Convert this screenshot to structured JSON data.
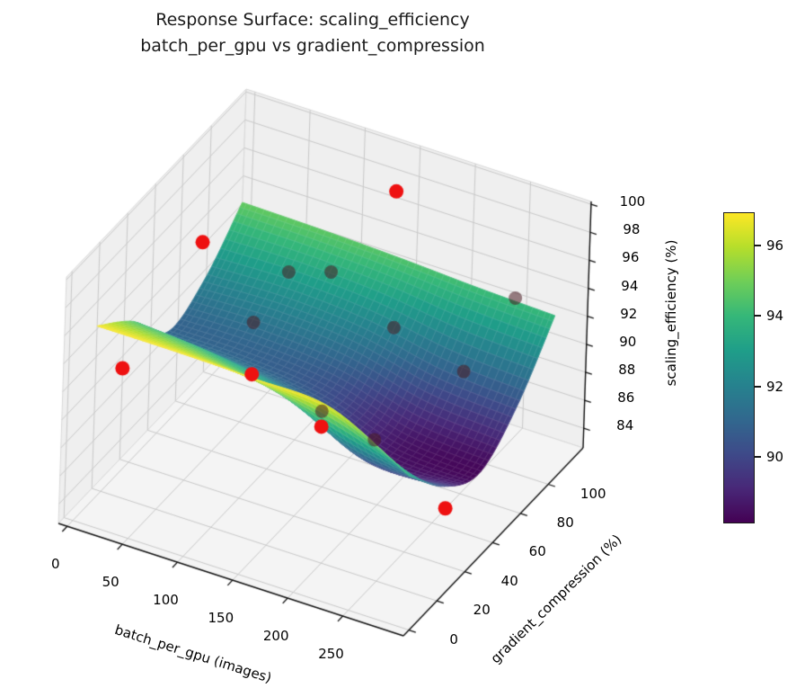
{
  "title": {
    "line1": "Response Surface: scaling_efficiency",
    "line2": "batch_per_gpu vs gradient_compression"
  },
  "chart_data": {
    "type": "surface",
    "title": "Response Surface: scaling_efficiency\nbatch_per_gpu vs gradient_compression",
    "xlabel": "batch_per_gpu (images)",
    "ylabel": "gradient_compression (%)",
    "zlabel": "scaling_efficiency (%)",
    "colormap": "viridis",
    "grid": true,
    "x_ticks": [
      0,
      50,
      100,
      150,
      200,
      250
    ],
    "y_ticks": [
      0,
      20,
      40,
      60,
      80,
      100
    ],
    "z_ticks": [
      84,
      86,
      88,
      90,
      92,
      94,
      96,
      98,
      100
    ],
    "axis_ranges": {
      "x": [
        -8,
        305
      ],
      "y": [
        -4,
        125
      ],
      "z": [
        82.6,
        100.2
      ]
    },
    "colorbar": {
      "ticks": [
        90,
        92,
        94,
        96
      ],
      "vmin": 88.1,
      "vmax": 96.95
    },
    "surface": {
      "x_values": [
        16,
        87,
        158,
        229,
        300
      ],
      "y_values": [
        0,
        26.25,
        52.5,
        78.75,
        105
      ],
      "z_grid": [
        [
          96.9,
          96.9,
          96.8,
          96.5,
          93.5
        ],
        [
          94.5,
          94.0,
          92.8,
          90.0,
          90.0
        ],
        [
          91.0,
          90.9,
          90.3,
          88.6,
          88.2
        ],
        [
          92.0,
          92.2,
          91.8,
          90.6,
          90.2
        ],
        [
          94.8,
          94.7,
          94.5,
          94.2,
          94.0
        ]
      ]
    },
    "scatter_points": [
      {
        "x": 160,
        "y": 100,
        "z": 99.8,
        "occluded": false
      },
      {
        "x": 48,
        "y": 50,
        "z": 98.5,
        "occluded": false
      },
      {
        "x": 16,
        "y": 20,
        "z": 91.8,
        "occluded": false
      },
      {
        "x": 96,
        "y": 50,
        "z": 90.3,
        "occluded": false
      },
      {
        "x": 160,
        "y": 50,
        "z": 88.2,
        "occluded": false
      },
      {
        "x": 264,
        "y": 58,
        "z": 84.2,
        "occluded": false
      },
      {
        "x": 96,
        "y": 75,
        "z": 95.0,
        "occluded": true
      },
      {
        "x": 128,
        "y": 80,
        "z": 95.3,
        "occluded": true
      },
      {
        "x": 270,
        "y": 100,
        "z": 95.0,
        "occluded": true
      },
      {
        "x": 96,
        "y": 50,
        "z": 94.0,
        "occluded": true
      },
      {
        "x": 192,
        "y": 75,
        "z": 93.5,
        "occluded": true
      },
      {
        "x": 256,
        "y": 75,
        "z": 92.0,
        "occluded": true
      },
      {
        "x": 208,
        "y": 50,
        "z": 88.5,
        "occluded": true
      },
      {
        "x": 160,
        "y": 50,
        "z": 89.3,
        "occluded": true
      }
    ],
    "scatter_color": "#ee1111",
    "occluded_scatter_color": "rgba(75,28,34,0.55)"
  }
}
